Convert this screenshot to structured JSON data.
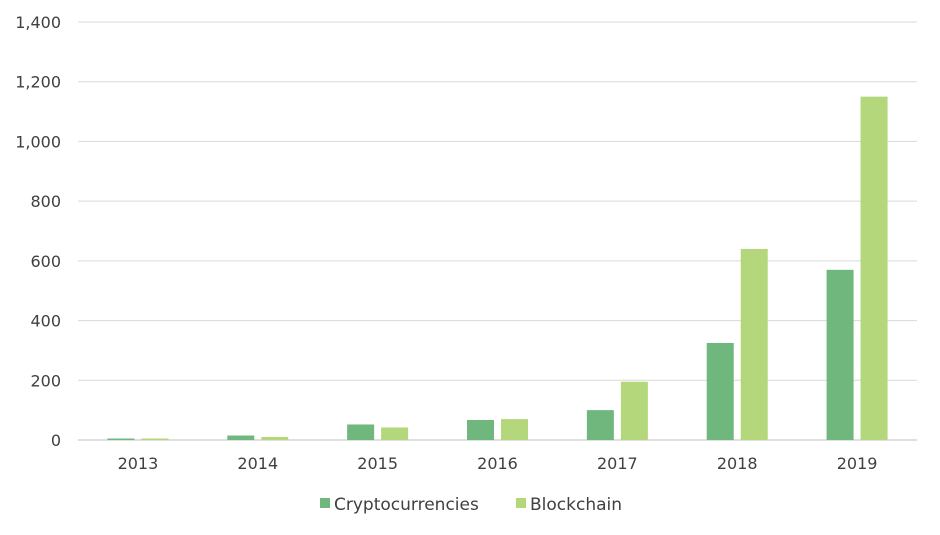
{
  "chart_data": {
    "type": "bar",
    "title": "",
    "xlabel": "",
    "ylabel": "",
    "categories": [
      "2013",
      "2014",
      "2015",
      "2016",
      "2017",
      "2018",
      "2019"
    ],
    "series": [
      {
        "name": "Cryptocurrencies",
        "color": "#70b77e",
        "values": [
          5,
          15,
          52,
          67,
          100,
          325,
          570
        ]
      },
      {
        "name": "Blockchain",
        "color": "#b3d77a",
        "values": [
          5,
          10,
          42,
          70,
          195,
          640,
          1150
        ]
      }
    ],
    "yticks": [
      0,
      200,
      400,
      600,
      800,
      1000,
      1200,
      1400
    ],
    "ytick_labels": [
      "0",
      "200",
      "400",
      "600",
      "800",
      "1,000",
      "1,200",
      "1,400"
    ],
    "ylim": [
      0,
      1400
    ],
    "grid": true,
    "legend_position": "bottom"
  }
}
